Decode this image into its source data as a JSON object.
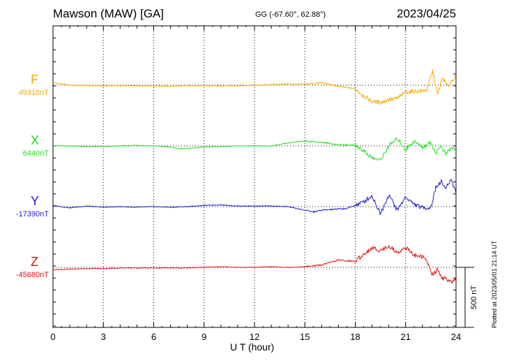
{
  "header": {
    "station": "Mawson (MAW)  [GA]",
    "coordinates": "GG (-67.60°,  62.88°)",
    "date": "2023/04/25"
  },
  "footer": {
    "plotted_at": "Plotted at 2023/05/01 21:14 UT"
  },
  "chart_data": {
    "type": "line",
    "xlabel": "U T (hour)",
    "xlim": [
      0,
      24
    ],
    "x_ticks": [
      "0",
      "3",
      "6",
      "9",
      "12",
      "15",
      "18",
      "21",
      "24"
    ],
    "scale_bar": {
      "label": "500 nT",
      "value_nT": 500
    },
    "series": [
      {
        "name": "F",
        "baseline_label": "49310nT",
        "baseline_nT": 49310,
        "color": "#f5a800",
        "t": [
          0,
          1,
          2,
          3,
          4,
          5,
          6,
          7,
          8,
          9,
          10,
          11,
          12,
          13,
          14,
          15,
          16,
          17,
          17.5,
          18,
          18.5,
          19,
          19.5,
          20,
          20.5,
          21,
          21.5,
          22,
          22.3,
          22.6,
          22.9,
          23.2,
          23.5,
          24
        ],
        "dev_nT": [
          20,
          0,
          -5,
          -5,
          -5,
          -6,
          -5,
          -10,
          -5,
          -6,
          -5,
          -5,
          -3,
          5,
          10,
          8,
          20,
          -10,
          -20,
          -30,
          -90,
          -135,
          -145,
          -120,
          -110,
          -60,
          -50,
          -50,
          -35,
          120,
          -80,
          60,
          -10,
          80
        ]
      },
      {
        "name": "X",
        "baseline_label": "6440nT",
        "baseline_nT": 6440,
        "color": "#22dd22",
        "t": [
          0,
          1,
          2,
          3,
          4,
          5,
          6,
          7,
          7.5,
          8,
          9,
          10,
          11,
          12,
          13,
          14,
          15,
          16,
          17,
          18,
          18.5,
          19,
          19.5,
          20,
          20.5,
          21,
          21.5,
          22,
          22.5,
          22.8,
          23.1,
          23.4,
          23.7,
          24
        ],
        "dev_nT": [
          0,
          0,
          -5,
          -5,
          0,
          5,
          0,
          -10,
          -25,
          -20,
          -10,
          -5,
          0,
          0,
          0,
          25,
          40,
          30,
          10,
          5,
          -40,
          -100,
          -120,
          0,
          60,
          -30,
          40,
          -10,
          30,
          -60,
          0,
          -70,
          -20,
          -30
        ]
      },
      {
        "name": "Y",
        "baseline_label": "-17390nT",
        "baseline_nT": -17390,
        "color": "#1a1acc",
        "t": [
          0,
          1,
          2,
          3,
          4,
          5,
          6,
          7,
          8,
          9,
          10,
          11,
          12,
          13,
          14,
          15,
          15.5,
          16,
          17,
          17.5,
          18,
          18.5,
          19,
          19.5,
          20,
          20.5,
          21,
          21.5,
          22,
          22.5,
          22.8,
          23.1,
          23.4,
          23.7,
          24
        ],
        "dev_nT": [
          10,
          -10,
          5,
          -5,
          0,
          -5,
          0,
          -5,
          0,
          10,
          15,
          5,
          5,
          5,
          0,
          -30,
          -45,
          -30,
          -20,
          -15,
          10,
          40,
          90,
          -60,
          100,
          -30,
          80,
          20,
          -10,
          -10,
          160,
          210,
          150,
          230,
          120
        ]
      },
      {
        "name": "Z",
        "baseline_label": "-45680nT",
        "baseline_nT": -45680,
        "color": "#dd1111",
        "t": [
          0,
          1,
          2,
          3,
          4,
          5,
          6,
          7,
          8,
          9,
          10,
          11,
          12,
          13,
          14,
          15,
          16,
          17,
          18,
          18.5,
          19,
          19.5,
          20,
          20.5,
          21,
          21.5,
          22,
          22.3,
          22.6,
          22.9,
          23.2,
          23.5,
          23.8,
          24
        ],
        "dev_nT": [
          -20,
          -15,
          -10,
          -10,
          -5,
          -5,
          -5,
          -5,
          -5,
          0,
          5,
          0,
          0,
          5,
          0,
          5,
          20,
          60,
          50,
          110,
          160,
          140,
          180,
          120,
          170,
          100,
          90,
          40,
          -60,
          -20,
          -90,
          -100,
          -130,
          -90
        ]
      }
    ]
  }
}
